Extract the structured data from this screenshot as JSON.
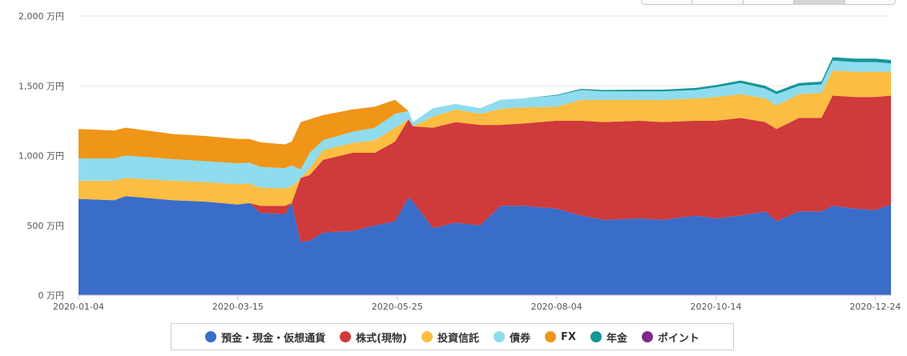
{
  "chart_data": {
    "type": "area",
    "stacked": true,
    "y_unit": "万円",
    "ylim": [
      0,
      2000
    ],
    "yticks": [
      {
        "value": 0,
        "label": "0 万円"
      },
      {
        "value": 500,
        "label": "500 万円"
      },
      {
        "value": 1000,
        "label": "1,000 万円"
      },
      {
        "value": 1500,
        "label": "1,500 万円"
      },
      {
        "value": 2000,
        "label": "2,000 万円"
      }
    ],
    "xticks": [
      "2020-01-04",
      "2020-03-15",
      "2020-05-25",
      "2020-08-04",
      "2020-10-14",
      "2020-12-24"
    ],
    "x_range": [
      "2020-01-04",
      "2020-12-31"
    ],
    "grid": true,
    "legend_position": "bottom",
    "x": [
      "2020-01-04",
      "2020-01-20",
      "2020-01-25",
      "2020-02-15",
      "2020-03-01",
      "2020-03-15",
      "2020-03-20",
      "2020-03-25",
      "2020-04-05",
      "2020-04-08",
      "2020-04-12",
      "2020-04-16",
      "2020-04-22",
      "2020-05-05",
      "2020-05-15",
      "2020-05-24",
      "2020-05-30",
      "2020-06-01",
      "2020-06-10",
      "2020-06-20",
      "2020-07-01",
      "2020-07-10",
      "2020-07-20",
      "2020-08-04",
      "2020-08-15",
      "2020-08-25",
      "2020-09-10",
      "2020-09-20",
      "2020-10-05",
      "2020-10-14",
      "2020-10-25",
      "2020-11-05",
      "2020-11-10",
      "2020-11-20",
      "2020-11-30",
      "2020-12-05",
      "2020-12-15",
      "2020-12-24",
      "2020-12-31"
    ],
    "series": [
      {
        "name": "預金・現金・仮想通貨",
        "color": "#3a6cc9",
        "values": [
          690,
          680,
          710,
          680,
          670,
          650,
          660,
          590,
          580,
          660,
          380,
          390,
          450,
          460,
          500,
          530,
          700,
          670,
          480,
          520,
          500,
          640,
          640,
          620,
          570,
          540,
          550,
          540,
          570,
          550,
          570,
          600,
          530,
          600,
          600,
          640,
          620,
          610,
          650
        ]
      },
      {
        "name": "株式(現物)",
        "color": "#cf3a3a",
        "values": [
          0,
          0,
          0,
          0,
          0,
          0,
          0,
          50,
          60,
          0,
          460,
          470,
          520,
          560,
          520,
          570,
          560,
          540,
          720,
          720,
          720,
          580,
          590,
          630,
          680,
          700,
          700,
          700,
          680,
          700,
          700,
          640,
          660,
          670,
          670,
          790,
          800,
          810,
          780
        ]
      },
      {
        "name": "投資信託",
        "color": "#fbbd42",
        "values": [
          130,
          140,
          130,
          140,
          140,
          145,
          140,
          130,
          125,
          120,
          0,
          50,
          70,
          70,
          90,
          100,
          0,
          0,
          80,
          90,
          80,
          115,
          115,
          100,
          150,
          160,
          150,
          160,
          160,
          170,
          170,
          170,
          170,
          170,
          180,
          180,
          180,
          180,
          170
        ]
      },
      {
        "name": "債券",
        "color": "#8fdcee",
        "values": [
          160,
          160,
          160,
          155,
          150,
          150,
          150,
          150,
          145,
          150,
          60,
          110,
          70,
          80,
          90,
          100,
          60,
          30,
          60,
          40,
          40,
          65,
          65,
          80,
          70,
          60,
          60,
          60,
          60,
          70,
          80,
          70,
          80,
          60,
          60,
          70,
          70,
          70,
          60
        ]
      },
      {
        "name": "FX",
        "color": "#ef9518",
        "values": [
          210,
          200,
          200,
          180,
          180,
          175,
          170,
          175,
          170,
          170,
          340,
          240,
          180,
          160,
          150,
          100,
          0,
          0,
          0,
          0,
          0,
          0,
          0,
          0,
          0,
          0,
          0,
          0,
          0,
          0,
          0,
          0,
          0,
          0,
          0,
          0,
          0,
          0,
          0
        ]
      },
      {
        "name": "年金",
        "color": "#169698",
        "values": [
          0,
          0,
          0,
          0,
          0,
          0,
          0,
          0,
          0,
          0,
          0,
          0,
          0,
          0,
          0,
          0,
          0,
          0,
          0,
          0,
          0,
          0,
          0,
          5,
          8,
          10,
          12,
          12,
          15,
          15,
          18,
          20,
          20,
          20,
          20,
          25,
          25,
          25,
          25
        ]
      },
      {
        "name": "ポイント",
        "color": "#7f2a8a",
        "values": [
          0,
          0,
          0,
          0,
          0,
          0,
          0,
          0,
          0,
          0,
          0,
          0,
          0,
          0,
          0,
          0,
          0,
          0,
          0,
          0,
          0,
          0,
          0,
          0,
          0,
          0,
          0,
          0,
          0,
          0,
          0,
          0,
          0,
          0,
          0,
          0,
          0,
          0,
          0
        ]
      }
    ]
  }
}
